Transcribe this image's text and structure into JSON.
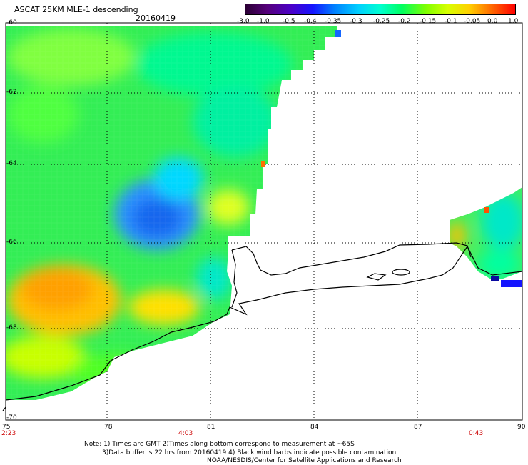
{
  "title": "ASCAT 25KM MLE-1 descending",
  "date": "20160419",
  "colorbar": {
    "labels": [
      "-3.0",
      "-1.0",
      "-0.5",
      "-0.4",
      "-0.35",
      "-0.3",
      "-0.25",
      "-0.2",
      "-0.15",
      "-0.1",
      "-0.05",
      "0.0",
      "1.0"
    ],
    "colors": [
      "#2a0033",
      "#55007a",
      "#4b00c8",
      "#1414ff",
      "#0080ff",
      "#00d0ff",
      "#00ffd0",
      "#00ff60",
      "#80ff00",
      "#d8ff00",
      "#ffd000",
      "#ff6000",
      "#ff0000"
    ]
  },
  "axes": {
    "lat_labels": [
      "-60",
      "-62",
      "-64",
      "-66",
      "-68",
      "-70"
    ],
    "lon_labels": [
      "75",
      "78",
      "81",
      "84",
      "87",
      "90"
    ]
  },
  "times": [
    "2:23",
    "4:03",
    "0:43"
  ],
  "notes": [
    "Note: 1) Times are GMT 2)Times along bottom correspond to measurement at ~65S",
    "3)Data buffer is 22 hrs from 20160419 4) Black wind barbs indicate possible contamination",
    "NOAA/NESDIS/Center for Satellite Applications and Research"
  ]
}
